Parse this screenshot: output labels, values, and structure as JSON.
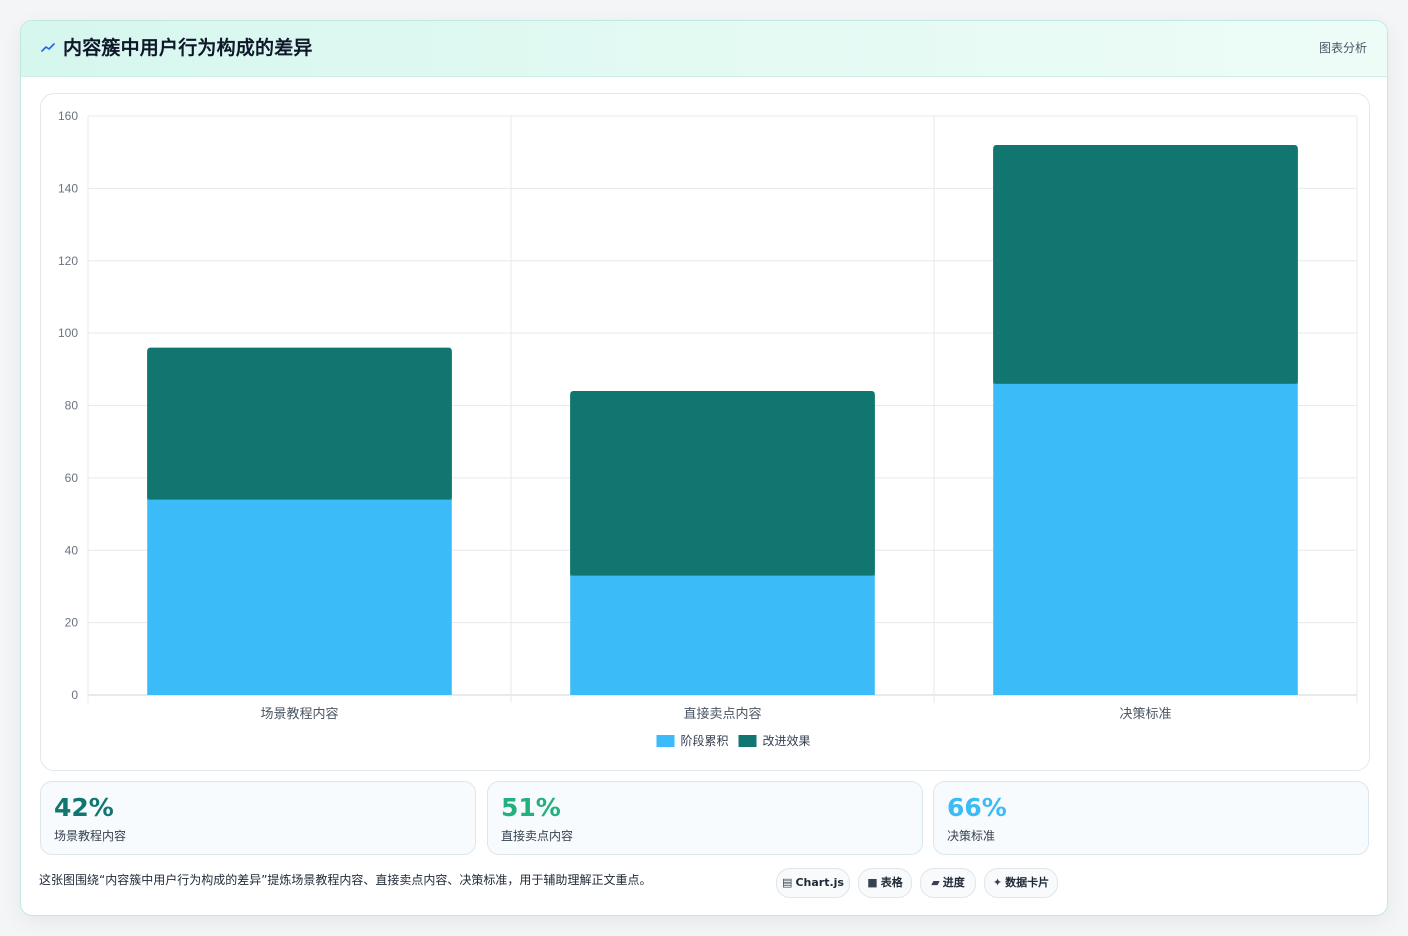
{
  "header": {
    "icon": "chart-line-icon",
    "title": "内容簇中用户行为构成的差异",
    "action_label": "图表分析"
  },
  "chart_data": {
    "type": "bar",
    "stacked": true,
    "categories": [
      "场景教程内容",
      "直接卖点内容",
      "决策标准"
    ],
    "series": [
      {
        "name": "阶段累积",
        "color": "#3bbbf7",
        "values": [
          54,
          33,
          86
        ]
      },
      {
        "name": "改进效果",
        "color": "#10766f",
        "values": [
          42,
          51,
          66
        ]
      }
    ],
    "title": "",
    "xlabel": "",
    "ylabel": "",
    "ylim": [
      0,
      160
    ],
    "yticks": [
      0,
      20,
      40,
      60,
      80,
      100,
      120,
      140,
      160
    ],
    "grid": true,
    "legend": "bottom"
  },
  "kpis": [
    {
      "value": "42%",
      "label": "场景教程内容",
      "color": "#10766f"
    },
    {
      "value": "51%",
      "label": "直接卖点内容",
      "color": "#22b07d"
    },
    {
      "value": "66%",
      "label": "决策标准",
      "color": "#3bbbf7"
    }
  ],
  "footer": {
    "note": "这张图围绕“内容簇中用户行为构成的差异”提炼场景教程内容、直接卖点内容、决策标准，用于辅助理解正文重点。",
    "chips": [
      {
        "icon": "chart-js-icon",
        "glyph": "▤",
        "label": "Chart.js"
      },
      {
        "icon": "table-icon",
        "glyph": "■",
        "label": "表格"
      },
      {
        "icon": "progress-icon",
        "glyph": "▰",
        "label": "进度"
      },
      {
        "icon": "data-card-icon",
        "glyph": "✦",
        "label": "数据卡片"
      }
    ]
  }
}
